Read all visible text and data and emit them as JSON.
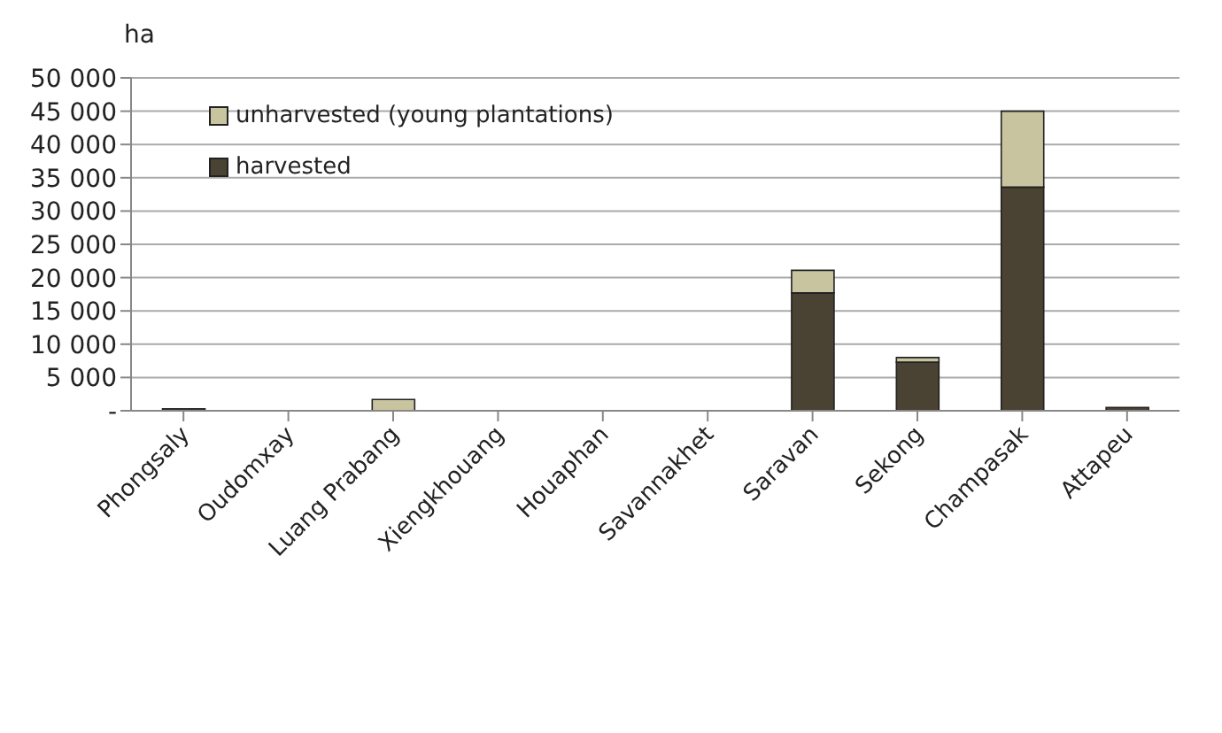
{
  "chart_data": {
    "type": "bar",
    "stacked": true,
    "ylabel": "ha",
    "categories": [
      "Phongsaly",
      "Oudomxay",
      "Luang Prabang",
      "Xiengkhouang",
      "Houaphan",
      "Savannakhet",
      "Saravan",
      "Sekong",
      "Champasak",
      "Attapeu"
    ],
    "series": [
      {
        "name": "harvested",
        "color": "#4a4232",
        "values": [
          300,
          null,
          null,
          null,
          0,
          0,
          17700,
          7300,
          33600,
          500
        ]
      },
      {
        "name": "unharvested (young plantations)",
        "color": "#c8c4a0",
        "values": [
          0,
          0,
          1700,
          0,
          0,
          0,
          3400,
          700,
          11400,
          0
        ]
      }
    ],
    "ylim": [
      0,
      50000
    ],
    "yticks": [
      {
        "value": 0,
        "label": "-"
      },
      {
        "value": 5000,
        "label": "5 000"
      },
      {
        "value": 10000,
        "label": "10 000"
      },
      {
        "value": 15000,
        "label": "15 000"
      },
      {
        "value": 20000,
        "label": "20 000"
      },
      {
        "value": 25000,
        "label": "25 000"
      },
      {
        "value": 30000,
        "label": "30 000"
      },
      {
        "value": 35000,
        "label": "35 000"
      },
      {
        "value": 40000,
        "label": "40 000"
      },
      {
        "value": 45000,
        "label": "45 000"
      },
      {
        "value": 50000,
        "label": "50 000"
      }
    ],
    "grid": "y",
    "legend": "top left"
  }
}
